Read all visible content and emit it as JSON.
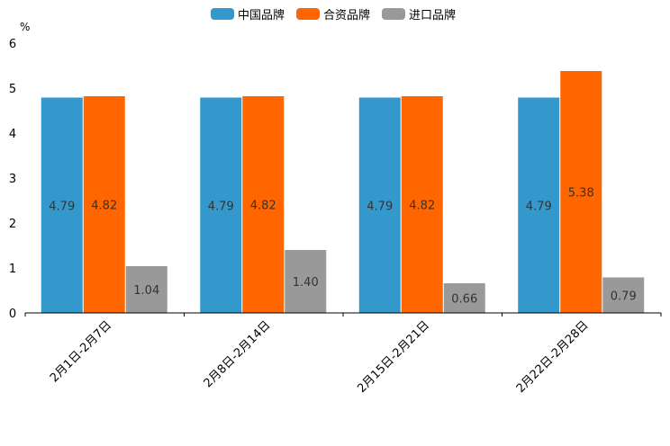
{
  "chart_data": {
    "type": "bar",
    "unit": "%",
    "categories": [
      "2月1日-2月7日",
      "2月8日-2月14日",
      "2月15日-2月21日",
      "2月22日-2月28日"
    ],
    "series": [
      {
        "name": "中国品牌",
        "color": "#3399cc",
        "values": [
          4.79,
          4.79,
          4.79,
          4.79
        ],
        "labels": [
          "4.79",
          "4.79",
          "4.79",
          "4.79"
        ]
      },
      {
        "name": "合资品牌",
        "color": "#ff6600",
        "values": [
          4.82,
          4.82,
          4.82,
          5.38
        ],
        "labels": [
          "4.82",
          "4.82",
          "4.82",
          "5.38"
        ]
      },
      {
        "name": "进口品牌",
        "color": "#999999",
        "values": [
          1.04,
          1.4,
          0.66,
          0.79
        ],
        "labels": [
          "1.04",
          "1.40",
          "0.66",
          "0.79"
        ]
      }
    ],
    "yticks": [
      "0",
      "1",
      "2",
      "3",
      "4",
      "5",
      "6"
    ],
    "ylim": [
      0,
      6
    ],
    "legend_position": "top-center"
  }
}
